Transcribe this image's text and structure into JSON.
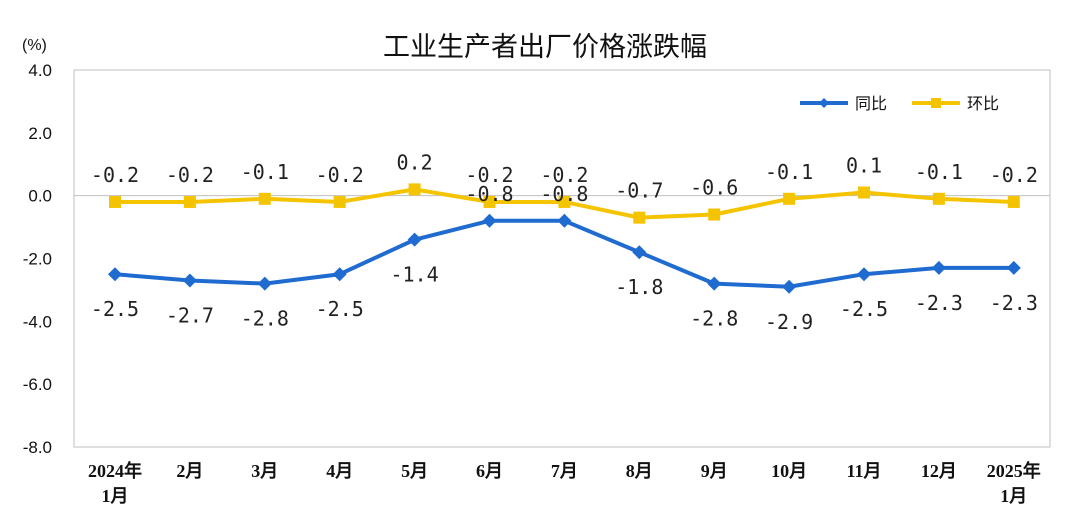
{
  "chart_data": {
    "type": "line",
    "title": "工业生产者出厂价格涨跌幅",
    "unit_label": "(%)",
    "categories": [
      [
        "2024年",
        "1月"
      ],
      [
        "2月"
      ],
      [
        "3月"
      ],
      [
        "4月"
      ],
      [
        "5月"
      ],
      [
        "6月"
      ],
      [
        "7月"
      ],
      [
        "8月"
      ],
      [
        "9月"
      ],
      [
        "10月"
      ],
      [
        "11月"
      ],
      [
        "12月"
      ],
      [
        "2025年",
        "1月"
      ]
    ],
    "ylim": [
      -8.0,
      4.0
    ],
    "yticks": [
      "4.0",
      "2.0",
      "0.0",
      "-2.0",
      "-4.0",
      "-6.0",
      "-8.0"
    ],
    "ytick_values": [
      4,
      2,
      0,
      -2,
      -4,
      -6,
      -8
    ],
    "grid": false,
    "legend_position": "top-right",
    "series": [
      {
        "name": "同比",
        "color": "#1F6BD0",
        "marker": "diamond",
        "values": [
          -2.5,
          -2.7,
          -2.8,
          -2.5,
          -1.4,
          -0.8,
          -0.8,
          -1.8,
          -2.8,
          -2.9,
          -2.5,
          -2.3,
          -2.3
        ],
        "labels": [
          "-2.5",
          "-2.7",
          "-2.8",
          "-2.5",
          "-1.4",
          "-0.8",
          "-0.8",
          "-1.8",
          "-2.8",
          "-2.9",
          "-2.5",
          "-2.3",
          "-2.3"
        ],
        "label_position": [
          "below",
          "below",
          "below",
          "below",
          "below",
          "above",
          "above",
          "below",
          "below",
          "below",
          "below",
          "below",
          "below"
        ]
      },
      {
        "name": "环比",
        "color": "#F5C400",
        "marker": "square",
        "values": [
          -0.2,
          -0.2,
          -0.1,
          -0.2,
          0.2,
          -0.2,
          -0.2,
          -0.7,
          -0.6,
          -0.1,
          0.1,
          -0.1,
          -0.2
        ],
        "labels": [
          "-0.2",
          "-0.2",
          "-0.1",
          "-0.2",
          "0.2",
          "-0.2",
          "-0.2",
          "-0.7",
          "-0.6",
          "-0.1",
          "0.1",
          "-0.1",
          "-0.2"
        ],
        "label_position": [
          "above",
          "above",
          "above",
          "above",
          "above",
          "above",
          "above",
          "above",
          "above",
          "above",
          "above",
          "above",
          "above"
        ]
      }
    ]
  }
}
